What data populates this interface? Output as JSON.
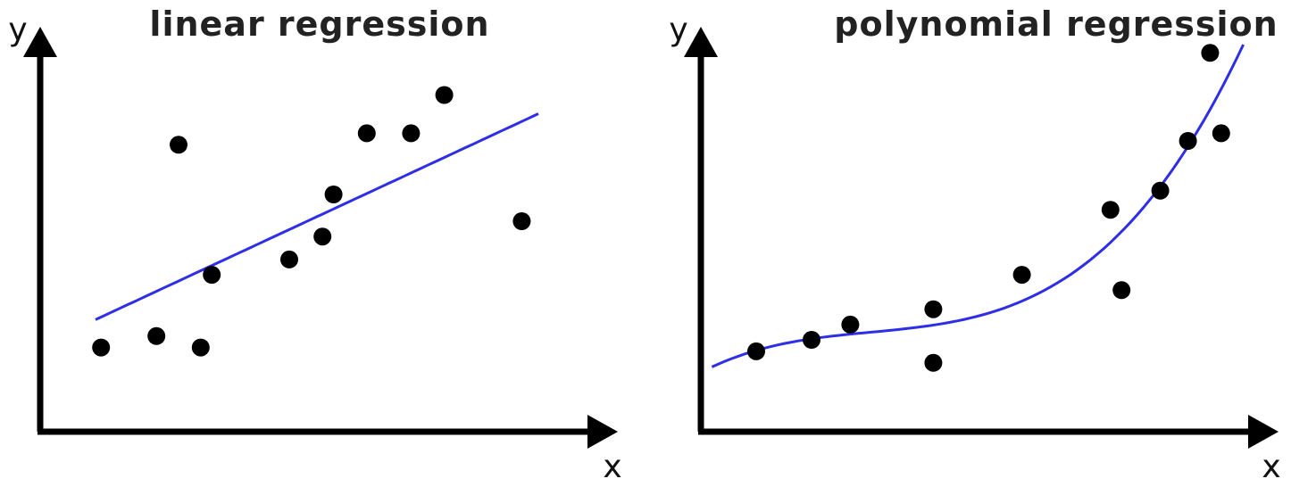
{
  "chart_data": [
    {
      "type": "scatter",
      "title": "linear regression",
      "xlabel": "x",
      "ylabel": "y",
      "xlim": [
        0,
        10
      ],
      "ylim": [
        0,
        10
      ],
      "grid": false,
      "point_color": "#000000",
      "fit": {
        "kind": "linear",
        "color": "#2e2ee6",
        "x_range": [
          1,
          9
        ]
      },
      "points": [
        {
          "x": 1.1,
          "y": 2.2
        },
        {
          "x": 2.1,
          "y": 2.5
        },
        {
          "x": 2.5,
          "y": 7.5
        },
        {
          "x": 2.9,
          "y": 2.2
        },
        {
          "x": 3.1,
          "y": 4.1
        },
        {
          "x": 4.5,
          "y": 4.5
        },
        {
          "x": 5.1,
          "y": 5.1
        },
        {
          "x": 5.3,
          "y": 6.2
        },
        {
          "x": 5.9,
          "y": 7.8
        },
        {
          "x": 6.7,
          "y": 7.8
        },
        {
          "x": 7.3,
          "y": 8.8
        },
        {
          "x": 8.7,
          "y": 5.5
        }
      ]
    },
    {
      "type": "scatter",
      "title": "polynomial regression",
      "xlabel": "x",
      "ylabel": "y",
      "xlim": [
        0,
        10
      ],
      "ylim": [
        0,
        10
      ],
      "grid": false,
      "point_color": "#000000",
      "fit": {
        "kind": "polynomial",
        "color": "#2e2ee6",
        "x_range": [
          0.2,
          9.8
        ]
      },
      "points": [
        {
          "x": 1.0,
          "y": 2.1
        },
        {
          "x": 2.0,
          "y": 2.4
        },
        {
          "x": 2.7,
          "y": 2.8
        },
        {
          "x": 4.2,
          "y": 3.2
        },
        {
          "x": 4.2,
          "y": 1.8
        },
        {
          "x": 5.8,
          "y": 4.1
        },
        {
          "x": 7.4,
          "y": 5.8
        },
        {
          "x": 7.6,
          "y": 3.7
        },
        {
          "x": 8.3,
          "y": 6.3
        },
        {
          "x": 8.8,
          "y": 7.6
        },
        {
          "x": 9.2,
          "y": 9.9
        },
        {
          "x": 9.4,
          "y": 7.8
        }
      ]
    }
  ]
}
